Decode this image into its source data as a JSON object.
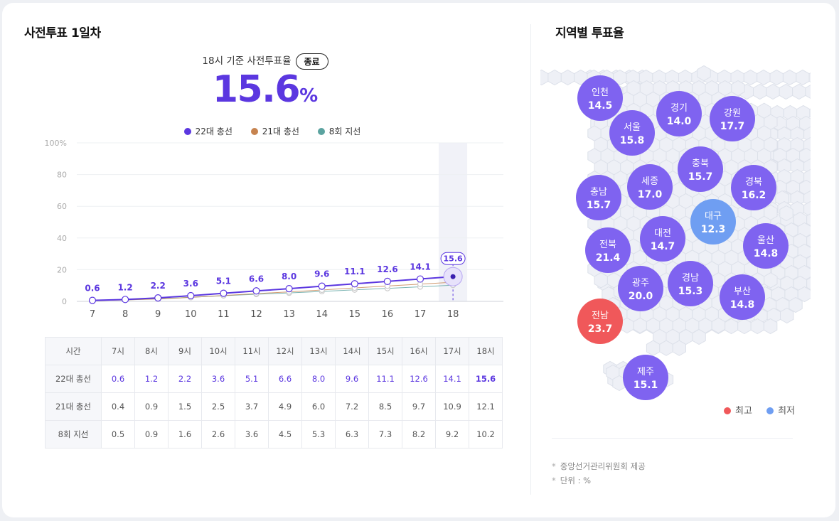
{
  "left_title": "사전투표 1일차",
  "subtitle": "18시 기준 사전투표율",
  "status_badge": "종료",
  "big_value": "15.6",
  "big_unit": "%",
  "colors": {
    "series22": "#5b37e0",
    "series21": "#c6834f",
    "series8": "#5ba3a0",
    "highest": "#f0585a",
    "lowest": "#6f9ef2",
    "region": "#7f63f0"
  },
  "chart_data": {
    "type": "line",
    "x": [
      "7",
      "8",
      "9",
      "10",
      "11",
      "12",
      "13",
      "14",
      "15",
      "16",
      "17",
      "18"
    ],
    "y_ticks": [
      "100%",
      "80",
      "60",
      "40",
      "20",
      "0"
    ],
    "ylim": [
      0,
      100
    ],
    "highlight_x": "18",
    "series": [
      {
        "name": "22대 총선",
        "values": [
          0.6,
          1.2,
          2.2,
          3.6,
          5.1,
          6.6,
          8.0,
          9.6,
          11.1,
          12.6,
          14.1,
          15.6
        ]
      },
      {
        "name": "21대 총선",
        "values": [
          0.4,
          0.9,
          1.5,
          2.5,
          3.7,
          4.9,
          6.0,
          7.2,
          8.5,
          9.7,
          10.9,
          12.1
        ]
      },
      {
        "name": "8회 지선",
        "values": [
          0.5,
          0.9,
          1.6,
          2.6,
          3.6,
          4.5,
          5.3,
          6.3,
          7.3,
          8.2,
          9.2,
          10.2
        ]
      }
    ],
    "data_labels": [
      "0.6",
      "1.2",
      "2.2",
      "3.6",
      "5.1",
      "6.6",
      "8.0",
      "9.6",
      "11.1",
      "12.6",
      "14.1",
      "15.6"
    ]
  },
  "table": {
    "corner": "시간",
    "hours": [
      "7시",
      "8시",
      "9시",
      "10시",
      "11시",
      "12시",
      "13시",
      "14시",
      "15시",
      "16시",
      "17시",
      "18시"
    ],
    "rows": [
      {
        "label": "22대 총선",
        "cells": [
          "0.6",
          "1.2",
          "2.2",
          "3.6",
          "5.1",
          "6.6",
          "8.0",
          "9.6",
          "11.1",
          "12.6",
          "14.1",
          "15.6"
        ]
      },
      {
        "label": "21대 총선",
        "cells": [
          "0.4",
          "0.9",
          "1.5",
          "2.5",
          "3.7",
          "4.9",
          "6.0",
          "7.2",
          "8.5",
          "9.7",
          "10.9",
          "12.1"
        ]
      },
      {
        "label": "8회 지선",
        "cells": [
          "0.5",
          "0.9",
          "1.6",
          "2.6",
          "3.6",
          "4.5",
          "5.3",
          "6.3",
          "7.3",
          "8.2",
          "9.2",
          "10.2"
        ]
      }
    ]
  },
  "right_title": "지역별 투표율",
  "regions": [
    {
      "name": "인천",
      "value": "14.5",
      "status": "normal"
    },
    {
      "name": "경기",
      "value": "14.0",
      "status": "normal"
    },
    {
      "name": "강원",
      "value": "17.7",
      "status": "normal"
    },
    {
      "name": "서울",
      "value": "15.8",
      "status": "normal"
    },
    {
      "name": "충북",
      "value": "15.7",
      "status": "normal"
    },
    {
      "name": "세종",
      "value": "17.0",
      "status": "normal"
    },
    {
      "name": "경북",
      "value": "16.2",
      "status": "normal"
    },
    {
      "name": "충남",
      "value": "15.7",
      "status": "normal"
    },
    {
      "name": "대구",
      "value": "12.3",
      "status": "lowest"
    },
    {
      "name": "대전",
      "value": "14.7",
      "status": "normal"
    },
    {
      "name": "전북",
      "value": "21.4",
      "status": "normal"
    },
    {
      "name": "울산",
      "value": "14.8",
      "status": "normal"
    },
    {
      "name": "경남",
      "value": "15.3",
      "status": "normal"
    },
    {
      "name": "광주",
      "value": "20.0",
      "status": "normal"
    },
    {
      "name": "부산",
      "value": "14.8",
      "status": "normal"
    },
    {
      "name": "전남",
      "value": "23.7",
      "status": "highest"
    },
    {
      "name": "제주",
      "value": "15.1",
      "status": "normal"
    }
  ],
  "map_legend": {
    "highest": "최고",
    "lowest": "최저"
  },
  "notes": [
    "중앙선거관리위원회 제공",
    "단위 : %"
  ]
}
